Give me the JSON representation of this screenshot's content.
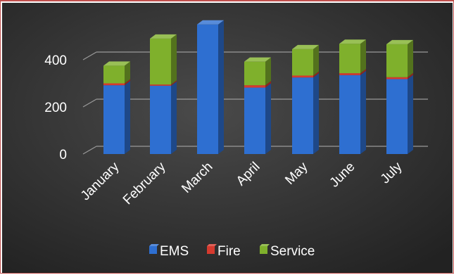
{
  "chart_data": {
    "type": "bar",
    "stacked": true,
    "style": "3d-column",
    "categories": [
      "January",
      "February",
      "March",
      "April",
      "May",
      "June",
      "July"
    ],
    "series": [
      {
        "name": "EMS",
        "color": "#2e6fd1",
        "values": [
          292,
          290,
          550,
          282,
          325,
          335,
          318
        ]
      },
      {
        "name": "Fire",
        "color": "#d63a2e",
        "values": [
          8,
          5,
          0,
          10,
          8,
          8,
          8
        ]
      },
      {
        "name": "Service",
        "color": "#7fb02c",
        "values": [
          75,
          195,
          0,
          100,
          112,
          125,
          140
        ]
      }
    ],
    "yticks": [
      0,
      200,
      400
    ],
    "ylim": [
      0,
      600
    ],
    "grid": true,
    "legend_position": "bottom",
    "background": "#333333",
    "gridline_color": "#9a9a9a"
  }
}
